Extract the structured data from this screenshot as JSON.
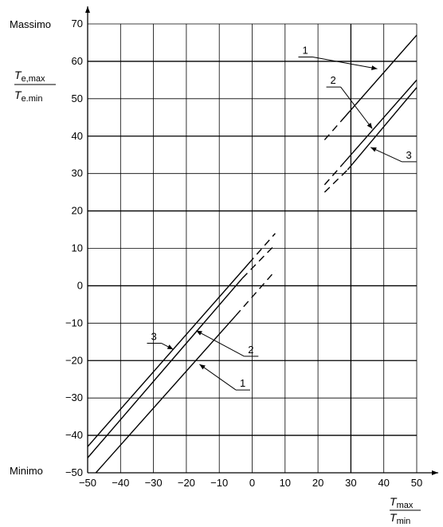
{
  "chart_data": {
    "type": "line",
    "x_ticks": [
      "−50",
      "−40",
      "−30",
      "−20",
      "−10",
      "0",
      "10",
      "20",
      "30",
      "40",
      "50"
    ],
    "x_tick_values": [
      -50,
      -40,
      -30,
      -20,
      -10,
      0,
      10,
      20,
      30,
      40,
      50
    ],
    "y_ticks": [
      "−50",
      "−40",
      "−30",
      "−20",
      "−10",
      "0",
      "10",
      "20",
      "30",
      "40",
      "50",
      "60",
      "70"
    ],
    "y_tick_values": [
      -50,
      -40,
      -30,
      -20,
      -10,
      0,
      10,
      20,
      30,
      40,
      50,
      60,
      70
    ],
    "xlim": [
      -50,
      50
    ],
    "ylim": [
      -50,
      70
    ],
    "grid": true,
    "y_top_label": "Massimo",
    "y_bottom_label": "Minimo",
    "ylabel": {
      "num_main": "T",
      "num_sub": "e,max",
      "den_main": "T",
      "den_sub": "e.min"
    },
    "xlabel": {
      "num_main": "T",
      "num_sub": "max",
      "den_main": "T",
      "den_sub": "min"
    },
    "series": [
      {
        "name": "1",
        "min_solid": [
          [
            -47.5,
            -50
          ],
          [
            -5,
            -8
          ]
        ],
        "min_dashed": [
          [
            -5,
            -8
          ],
          [
            7,
            4
          ]
        ],
        "max_dashed": [
          [
            22,
            39
          ],
          [
            27,
            44
          ]
        ],
        "max_solid": [
          [
            27,
            44
          ],
          [
            50,
            67
          ]
        ]
      },
      {
        "name": "2",
        "min_solid": [
          [
            -50,
            -46
          ],
          [
            -3,
            2
          ]
        ],
        "min_dashed": [
          [
            -3,
            2
          ],
          [
            7,
            11
          ]
        ],
        "max_dashed": [
          [
            22,
            27
          ],
          [
            28,
            33
          ]
        ],
        "max_solid": [
          [
            28,
            33
          ],
          [
            50,
            55
          ]
        ]
      },
      {
        "name": "3",
        "min_solid": [
          [
            -50,
            -43
          ],
          [
            -1,
            6
          ]
        ],
        "min_dashed": [
          [
            -1,
            6
          ],
          [
            7,
            14
          ]
        ],
        "max_dashed": [
          [
            22,
            25
          ],
          [
            29,
            31
          ]
        ],
        "max_solid": [
          [
            29,
            31
          ],
          [
            50,
            53
          ]
        ]
      }
    ],
    "annotations": [
      {
        "text": "1",
        "label_at": [
          15,
          62
        ],
        "points_to": [
          38,
          58
        ]
      },
      {
        "text": "2",
        "label_at": [
          23.5,
          54
        ],
        "points_to": [
          36.5,
          42
        ]
      },
      {
        "text": "3",
        "label_at": [
          46.5,
          34
        ],
        "points_to": [
          36,
          37
        ]
      },
      {
        "text": "1",
        "label_at": [
          -4,
          -27
        ],
        "points_to": [
          -16,
          -21
        ]
      },
      {
        "text": "2",
        "label_at": [
          -1.5,
          -18
        ],
        "points_to": [
          -17,
          -12
        ]
      },
      {
        "text": "3",
        "label_at": [
          -31,
          -14.5
        ],
        "points_to": [
          -24,
          -17
        ]
      }
    ]
  }
}
